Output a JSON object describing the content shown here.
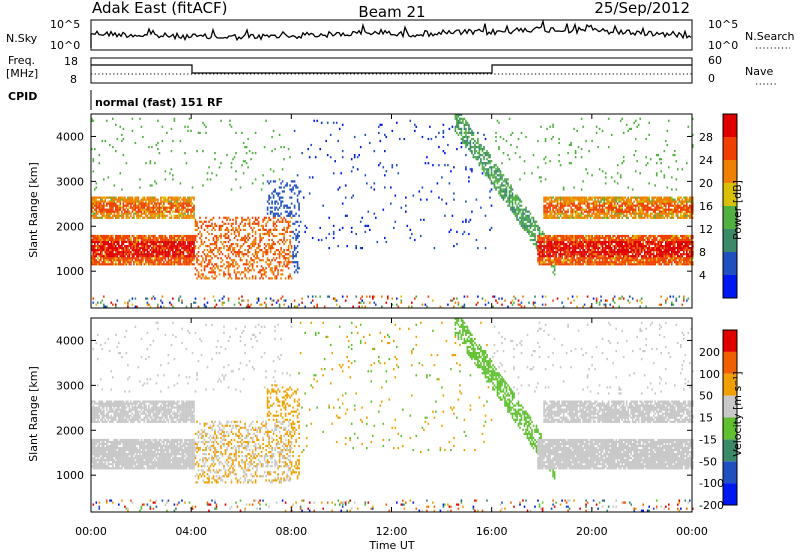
{
  "header": {
    "station": "Adak East (fitACF)",
    "beam": "Beam 21",
    "date": "25/Sep/2012"
  },
  "top_panels": {
    "nsky_label": "N.Sky",
    "nsky_ticks": [
      "10^5",
      "10^0"
    ],
    "nsearch_label": "N.Search",
    "nsearch_ticks": [
      "10^5",
      "10^0"
    ],
    "freq_label_1": "Freq.",
    "freq_label_2": "[MHz]",
    "freq_ticks": [
      "18",
      "8"
    ],
    "nave_label": "Nave",
    "nave_ticks": [
      "60",
      "0"
    ],
    "cpid_label": "CPID",
    "cpid_text": "normal (fast) 151 RF"
  },
  "chart_data": [
    {
      "type": "heatmap",
      "title": "",
      "ylabel": "Slant Range [km]",
      "xlabel": "",
      "x_ticks": [
        "00:00",
        "04:00",
        "08:00",
        "12:00",
        "16:00",
        "20:00",
        "00:00"
      ],
      "y_ticks": [
        1000,
        2000,
        3000,
        4000
      ],
      "ylim": [
        180,
        4500
      ],
      "xlim_hours": [
        0,
        24
      ],
      "colorbar": {
        "label": "Power [dB]",
        "ticks": [
          "4",
          "8",
          "12",
          "16",
          "20",
          "24",
          "28"
        ],
        "colors": [
          "#0018f0",
          "#2050c0",
          "#3a8a6a",
          "#50b040",
          "#d8c000",
          "#f08000",
          "#f04000",
          "#e00000"
        ]
      },
      "bands": [
        {
          "name": "lower",
          "x_start": 0,
          "x_end": 24,
          "y_start": 1100,
          "y_end": 1800
        },
        {
          "name": "upper",
          "x_start": 0,
          "x_end": 24,
          "y_start": 2200,
          "y_end": 2600
        }
      ]
    },
    {
      "type": "heatmap",
      "title": "",
      "ylabel": "Slant Range [km]",
      "xlabel": "Time UT",
      "x_ticks": [
        "00:00",
        "04:00",
        "08:00",
        "12:00",
        "16:00",
        "20:00",
        "00:00"
      ],
      "y_ticks": [
        1000,
        2000,
        3000,
        4000
      ],
      "ylim": [
        180,
        4500
      ],
      "xlim_hours": [
        0,
        24
      ],
      "colorbar": {
        "label": "Velocity [m s⁻¹]",
        "ticks": [
          "200",
          "100",
          "50",
          "15",
          "-15",
          "-50",
          "-100",
          "-200"
        ],
        "colors": [
          "#0018f0",
          "#2050c0",
          "#3a8a6a",
          "#60c030",
          "#c8c8c8",
          "#f0a000",
          "#f06000",
          "#e00000"
        ]
      }
    }
  ]
}
